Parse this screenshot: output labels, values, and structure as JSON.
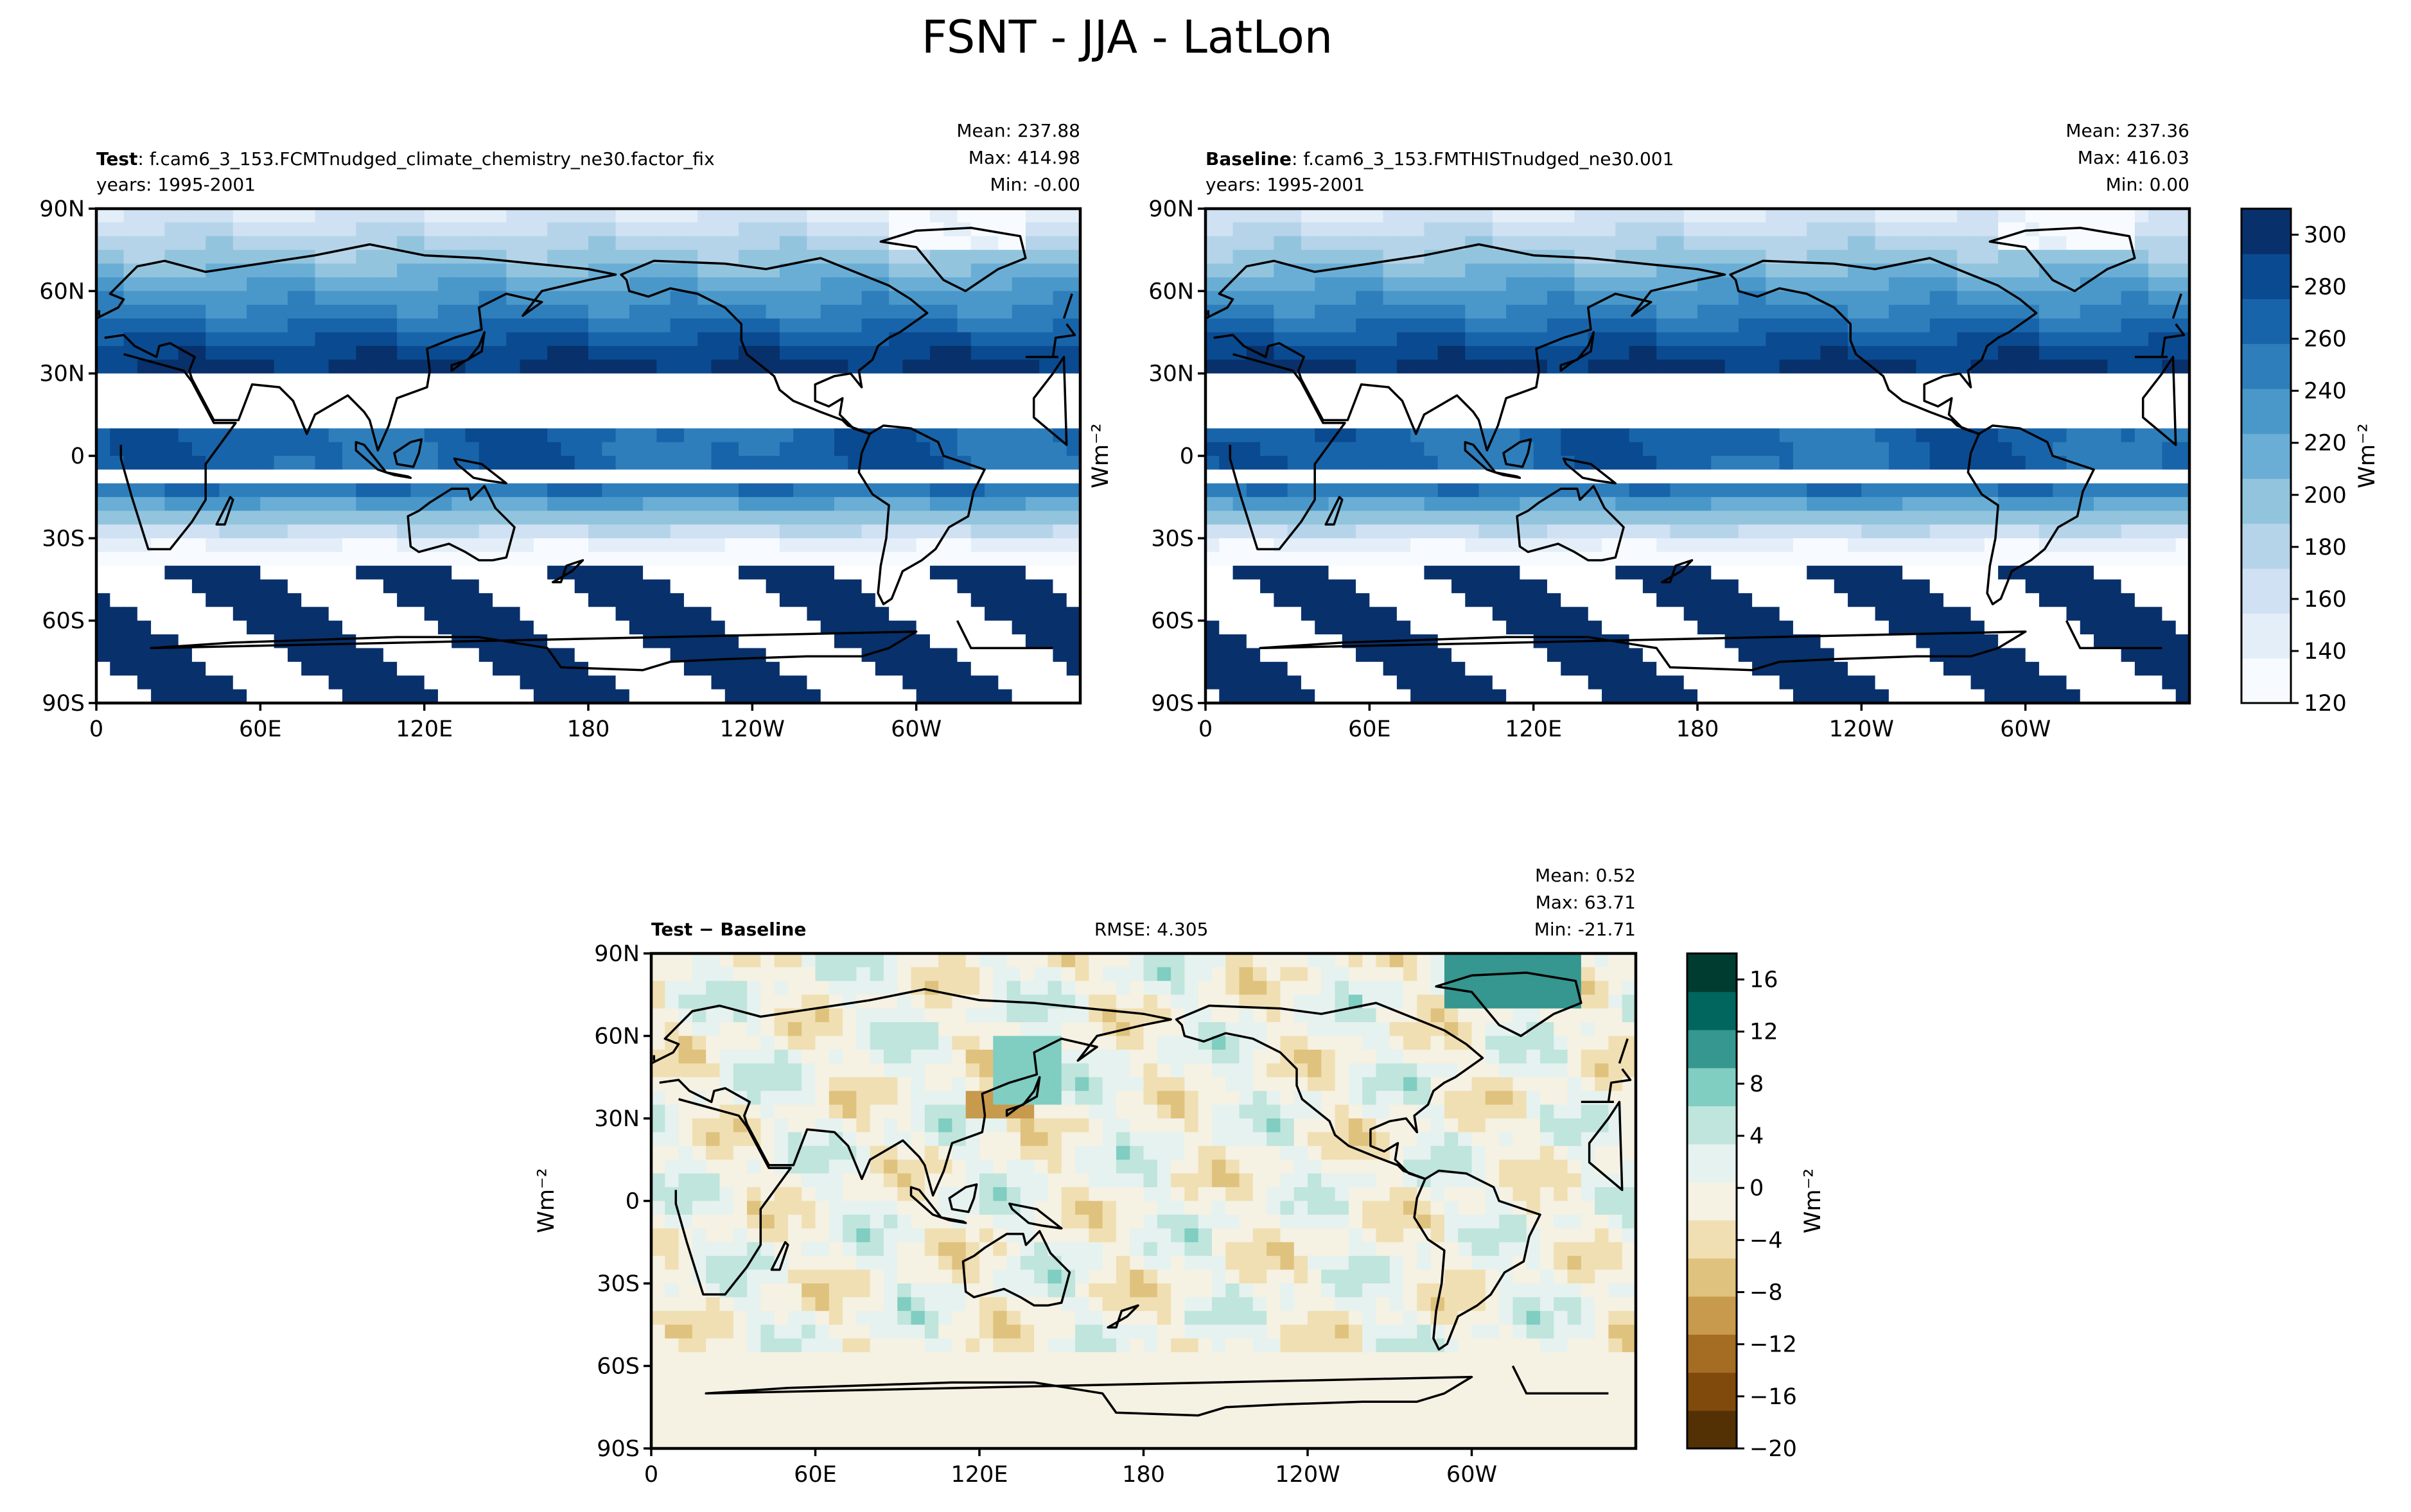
{
  "figure": {
    "title": "FSNT - JJA - LatLon"
  },
  "chart_data": [
    {
      "type": "heatmap",
      "panel": "test",
      "label_bold": "Test",
      "label_rest": ": f.cam6_3_153.FCMTnudged_climate_chemistry_ne30.factor_fix",
      "years": "years: 1995-2001",
      "stats": {
        "mean": "Mean: 237.88",
        "max": "Max: 414.98",
        "min": "Min: -0.00"
      },
      "y_ticks": [
        "90N",
        "60N",
        "30N",
        "0",
        "30S",
        "60S",
        "90S"
      ],
      "x_ticks": [
        "0",
        "60E",
        "120E",
        "180",
        "120W",
        "60W"
      ],
      "ylabel": "",
      "xlim": [
        0,
        360
      ],
      "ylim": [
        -90,
        90
      ]
    },
    {
      "type": "heatmap",
      "panel": "baseline",
      "label_bold": "Baseline",
      "label_rest": ": f.cam6_3_153.FMTHISTnudged_ne30.001",
      "years": "years: 1995-2001",
      "stats": {
        "mean": "Mean: 237.36",
        "max": "Max: 416.03",
        "min": "Min:  0.00"
      },
      "y_ticks": [
        "90N",
        "60N",
        "30N",
        "0",
        "30S",
        "60S",
        "90S"
      ],
      "x_ticks": [
        "0",
        "60E",
        "120E",
        "180",
        "120W",
        "60W"
      ],
      "ylabel": "Wm⁻²",
      "xlim": [
        0,
        360
      ],
      "ylim": [
        -90,
        90
      ]
    },
    {
      "type": "heatmap",
      "panel": "diff",
      "label_bold": "Test − Baseline",
      "rmse": "RMSE: 4.305",
      "stats": {
        "mean": "Mean:  0.52",
        "max": "Max: 63.71",
        "min": "Min: -21.71"
      },
      "y_ticks": [
        "90N",
        "60N",
        "30N",
        "0",
        "30S",
        "60S",
        "90S"
      ],
      "x_ticks": [
        "0",
        "60E",
        "120E",
        "180",
        "120W",
        "60W"
      ],
      "ylabel": "Wm⁻²",
      "xlim": [
        0,
        360
      ],
      "ylim": [
        -90,
        90
      ]
    }
  ],
  "colorbars": {
    "main": {
      "label": "Wm⁻²",
      "range": [
        120,
        310
      ],
      "ticks": [
        120,
        140,
        160,
        180,
        200,
        220,
        240,
        260,
        280,
        300
      ],
      "colors": [
        "#f7fbff",
        "#e3eef9",
        "#cfe1f2",
        "#b5d4e9",
        "#93c4de",
        "#6aaed6",
        "#4a98c9",
        "#2e7ebc",
        "#1864aa",
        "#0a4a90",
        "#08306b"
      ]
    },
    "diff": {
      "label": "Wm⁻²",
      "range": [
        -20,
        18
      ],
      "ticks": [
        -20,
        -16,
        -12,
        -8,
        -4,
        0,
        4,
        8,
        12,
        16
      ],
      "tick_labels": [
        "−20",
        "−16",
        "−12",
        "−8",
        "−4",
        "0",
        "4",
        "8",
        "12",
        "16"
      ],
      "colors": [
        "#543005",
        "#7f4a0c",
        "#a46d23",
        "#c89a4d",
        "#dfc27d",
        "#f0dfb2",
        "#f5f1e3",
        "#e6f2ef",
        "#bfe5dd",
        "#80cdc1",
        "#35978f",
        "#01665e",
        "#003c30"
      ]
    }
  }
}
